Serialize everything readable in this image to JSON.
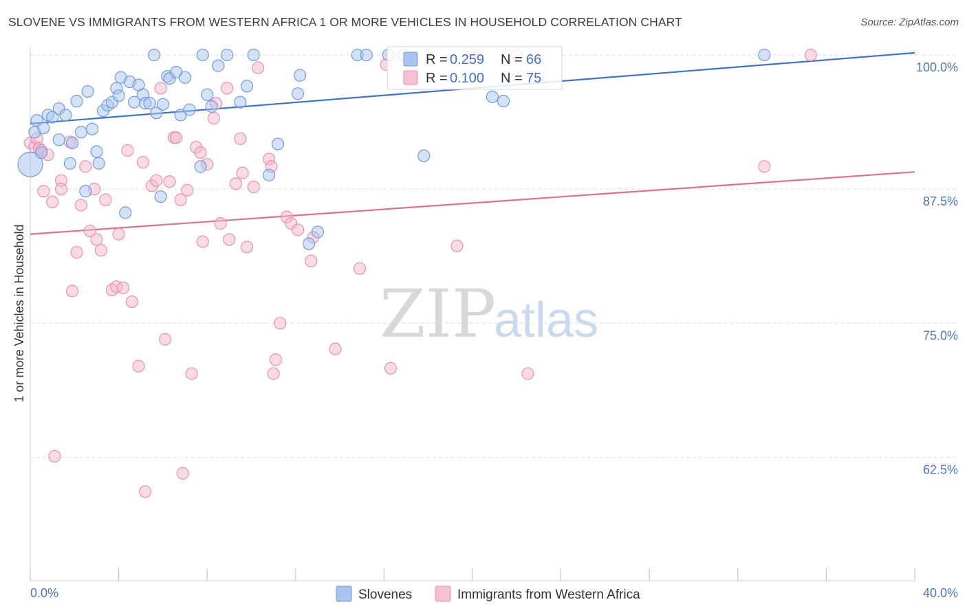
{
  "header": {
    "title": "SLOVENE VS IMMIGRANTS FROM WESTERN AFRICA 1 OR MORE VEHICLES IN HOUSEHOLD CORRELATION CHART",
    "source": "Source: ZipAtlas.com"
  },
  "watermark": {
    "zip": "ZIP",
    "atlas": "atlas"
  },
  "colors": {
    "blue": "#3b74d1",
    "blue_fill": "#a9c5ee",
    "pink": "#e86b96",
    "pink_fill": "#f5b8cb",
    "tick_text": "#4a74c9",
    "grid": "#dedede"
  },
  "chart_data": {
    "type": "scatter",
    "title": "SLOVENE VS IMMIGRANTS FROM WESTERN AFRICA 1 OR MORE VEHICLES IN HOUSEHOLD CORRELATION CHART",
    "xlabel": "",
    "ylabel": "1 or more Vehicles in Household",
    "xlim": [
      0,
      40
    ],
    "ylim": [
      51,
      101.5
    ],
    "x_tick_labels": [
      "0.0%",
      "40.0%"
    ],
    "y_tick_values": [
      62.5,
      75.0,
      87.5,
      100.0
    ],
    "y_tick_labels": [
      "62.5%",
      "75.0%",
      "87.5%",
      "100.0%"
    ],
    "grid": true,
    "legend_position": "top-center",
    "stats": [
      {
        "r_label": "R =",
        "r_value": "0.259",
        "n_label": "N =",
        "n_value": "66"
      },
      {
        "r_label": "R =",
        "r_value": "0.100",
        "n_label": "N =",
        "n_value": "75"
      }
    ],
    "series": [
      {
        "name": "Slovenes",
        "color": "#3b74d1",
        "trend": {
          "x": [
            0,
            40
          ],
          "y": [
            93.6,
            100.2
          ]
        },
        "points": [
          [
            0.0,
            89.8
          ],
          [
            0.2,
            92.8
          ],
          [
            0.3,
            93.9
          ],
          [
            0.5,
            90.9
          ],
          [
            0.6,
            93.2
          ],
          [
            0.8,
            94.4
          ],
          [
            1.0,
            94.2
          ],
          [
            1.3,
            95.0
          ],
          [
            1.6,
            94.4
          ],
          [
            1.3,
            92.1
          ],
          [
            1.8,
            89.9
          ],
          [
            1.9,
            91.8
          ],
          [
            2.1,
            95.7
          ],
          [
            2.3,
            92.8
          ],
          [
            2.5,
            87.3
          ],
          [
            2.6,
            96.6
          ],
          [
            2.8,
            93.1
          ],
          [
            3.0,
            91.0
          ],
          [
            3.1,
            89.9
          ],
          [
            3.3,
            94.8
          ],
          [
            3.5,
            95.3
          ],
          [
            3.7,
            95.6
          ],
          [
            3.9,
            96.9
          ],
          [
            4.0,
            96.2
          ],
          [
            4.1,
            97.9
          ],
          [
            4.3,
            85.3
          ],
          [
            4.5,
            97.5
          ],
          [
            4.7,
            95.6
          ],
          [
            4.9,
            97.2
          ],
          [
            5.1,
            96.3
          ],
          [
            5.2,
            95.5
          ],
          [
            5.4,
            95.5
          ],
          [
            5.6,
            100.0
          ],
          [
            5.7,
            94.6
          ],
          [
            5.9,
            86.8
          ],
          [
            6.0,
            95.4
          ],
          [
            6.2,
            98.0
          ],
          [
            6.3,
            97.8
          ],
          [
            6.6,
            98.4
          ],
          [
            6.8,
            94.4
          ],
          [
            7.0,
            97.9
          ],
          [
            7.2,
            94.9
          ],
          [
            7.7,
            89.6
          ],
          [
            7.8,
            100.0
          ],
          [
            8.0,
            96.3
          ],
          [
            8.2,
            95.2
          ],
          [
            8.5,
            99.0
          ],
          [
            8.9,
            100.0
          ],
          [
            9.5,
            95.6
          ],
          [
            9.8,
            97.1
          ],
          [
            10.1,
            100.0
          ],
          [
            10.8,
            88.8
          ],
          [
            11.2,
            91.7
          ],
          [
            12.1,
            96.4
          ],
          [
            12.2,
            98.1
          ],
          [
            12.6,
            82.4
          ],
          [
            13.0,
            83.5
          ],
          [
            14.8,
            100.0
          ],
          [
            15.2,
            100.0
          ],
          [
            16.2,
            100.0
          ],
          [
            16.9,
            100.0
          ],
          [
            17.8,
            90.6
          ],
          [
            20.9,
            96.1
          ],
          [
            21.4,
            95.7
          ],
          [
            22.0,
            100.0
          ],
          [
            33.2,
            100.0
          ]
        ]
      },
      {
        "name": "Immigrants from Western Africa",
        "color": "#e86b96",
        "trend": {
          "x": [
            0,
            40
          ],
          "y": [
            83.3,
            89.1
          ]
        },
        "points": [
          [
            0.0,
            91.8
          ],
          [
            0.2,
            91.4
          ],
          [
            0.3,
            92.2
          ],
          [
            0.4,
            91.3
          ],
          [
            0.5,
            91.1
          ],
          [
            0.6,
            87.3
          ],
          [
            0.8,
            90.7
          ],
          [
            1.0,
            86.3
          ],
          [
            1.1,
            62.6
          ],
          [
            1.4,
            88.3
          ],
          [
            1.4,
            87.5
          ],
          [
            1.8,
            91.9
          ],
          [
            1.9,
            78.0
          ],
          [
            2.1,
            81.6
          ],
          [
            2.3,
            86.0
          ],
          [
            2.5,
            89.6
          ],
          [
            2.7,
            83.6
          ],
          [
            2.9,
            87.5
          ],
          [
            3.0,
            82.8
          ],
          [
            3.2,
            81.8
          ],
          [
            3.4,
            86.5
          ],
          [
            3.7,
            78.1
          ],
          [
            3.9,
            78.4
          ],
          [
            4.0,
            83.3
          ],
          [
            4.2,
            78.3
          ],
          [
            4.4,
            91.1
          ],
          [
            4.6,
            77.0
          ],
          [
            4.9,
            71.0
          ],
          [
            5.1,
            90.0
          ],
          [
            5.2,
            59.3
          ],
          [
            5.5,
            87.8
          ],
          [
            5.7,
            88.3
          ],
          [
            5.9,
            96.9
          ],
          [
            6.1,
            73.5
          ],
          [
            6.3,
            88.2
          ],
          [
            6.5,
            92.3
          ],
          [
            6.6,
            92.3
          ],
          [
            6.8,
            86.5
          ],
          [
            6.9,
            61.0
          ],
          [
            7.1,
            87.4
          ],
          [
            7.3,
            70.3
          ],
          [
            7.5,
            91.4
          ],
          [
            7.7,
            90.9
          ],
          [
            7.8,
            82.6
          ],
          [
            8.0,
            89.8
          ],
          [
            8.3,
            94.1
          ],
          [
            8.4,
            95.5
          ],
          [
            8.6,
            84.3
          ],
          [
            8.9,
            96.9
          ],
          [
            9.0,
            82.8
          ],
          [
            9.3,
            88.0
          ],
          [
            9.5,
            92.2
          ],
          [
            9.6,
            89.0
          ],
          [
            9.8,
            82.1
          ],
          [
            10.1,
            87.7
          ],
          [
            10.3,
            98.8
          ],
          [
            10.8,
            90.3
          ],
          [
            10.9,
            89.6
          ],
          [
            11.0,
            70.3
          ],
          [
            11.1,
            71.6
          ],
          [
            11.3,
            75.0
          ],
          [
            11.6,
            84.9
          ],
          [
            11.8,
            84.3
          ],
          [
            12.1,
            83.7
          ],
          [
            12.7,
            80.8
          ],
          [
            12.8,
            83.0
          ],
          [
            13.8,
            72.6
          ],
          [
            14.9,
            80.1
          ],
          [
            16.1,
            99.1
          ],
          [
            16.3,
            70.8
          ],
          [
            20.0,
            100.0
          ],
          [
            19.3,
            82.2
          ],
          [
            22.5,
            70.3
          ],
          [
            33.2,
            89.6
          ],
          [
            35.3,
            100.0
          ]
        ]
      }
    ]
  }
}
